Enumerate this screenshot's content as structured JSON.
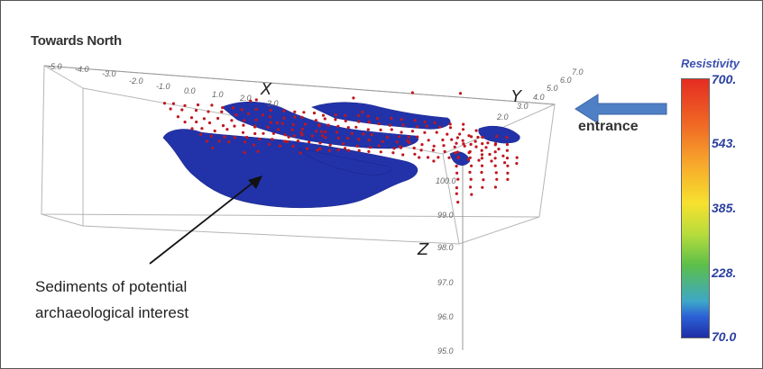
{
  "title": "Towards North",
  "annotation": {
    "line1": "Sediments of potential",
    "line2": "archaeological interest"
  },
  "entrance_label": "entrance",
  "axes": {
    "x_label": "X",
    "y_label": "Y",
    "z_label": "Z",
    "x_ticks": [
      "-5.0",
      "-4.0",
      "-3.0",
      "-2.0",
      "-1.0",
      "0.0",
      "1.0",
      "2.0",
      "3.0"
    ],
    "y_ticks": [
      "2.0",
      "3.0",
      "4.0",
      "5.0",
      "6.0",
      "7.0"
    ],
    "z_ticks": [
      "100.0",
      "99.0",
      "98.0",
      "97.0",
      "96.0",
      "95.0"
    ]
  },
  "colorbar": {
    "title": "Resistivity",
    "values": [
      "700.",
      "543.",
      "385.",
      "228.",
      "70.0"
    ]
  },
  "colors": {
    "body": "#2233aa",
    "points": "#c0161e",
    "arrow": "#4f7fc4",
    "colorbar_label": "#2a3fa0"
  }
}
